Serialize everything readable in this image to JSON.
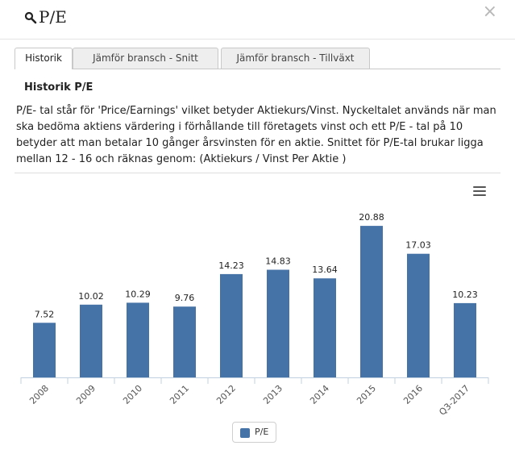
{
  "header": {
    "title": "P/E",
    "search_icon": "search-icon",
    "close_label": "×"
  },
  "tabs": [
    {
      "label": "Historik",
      "active": true
    },
    {
      "label": "Jämför bransch - Snitt",
      "active": false
    },
    {
      "label": "Jämför bransch - Tillväxt",
      "active": false
    }
  ],
  "panel": {
    "title": "Historik P/E",
    "description": "P/E- tal står för 'Price/Earnings' vilket betyder Aktiekurs/Vinst. Nyckeltalet används när man ska bedöma aktiens värdering i förhållande till företagets vinst och ett P/E - tal på 10 betyder att man betalar 10 gånger årsvinsten för en aktie. Snittet för P/E-tal brukar ligga mellan 12 - 16 och räknas genom: (Aktiekurs / Vinst Per Aktie )"
  },
  "chart_menu_icon": "hamburger-menu-icon",
  "colors": {
    "bar": "#4572a7",
    "axis": "#c0d0e0"
  },
  "chart_data": {
    "type": "bar",
    "categories": [
      "2008",
      "2009",
      "2010",
      "2011",
      "2012",
      "2013",
      "2014",
      "2015",
      "2016",
      "Q3-2017"
    ],
    "series": [
      {
        "name": "P/E",
        "values": [
          7.52,
          10.02,
          10.29,
          9.76,
          14.23,
          14.83,
          13.64,
          20.88,
          17.03,
          10.23
        ]
      }
    ],
    "data_labels": [
      "7.52",
      "10.02",
      "10.29",
      "9.76",
      "14.23",
      "14.83",
      "13.64",
      "20.88",
      "17.03",
      "10.23"
    ],
    "ylim": [
      0,
      22
    ],
    "grid": false,
    "legend": "bottom-center"
  },
  "legend": {
    "label": "P/E"
  }
}
